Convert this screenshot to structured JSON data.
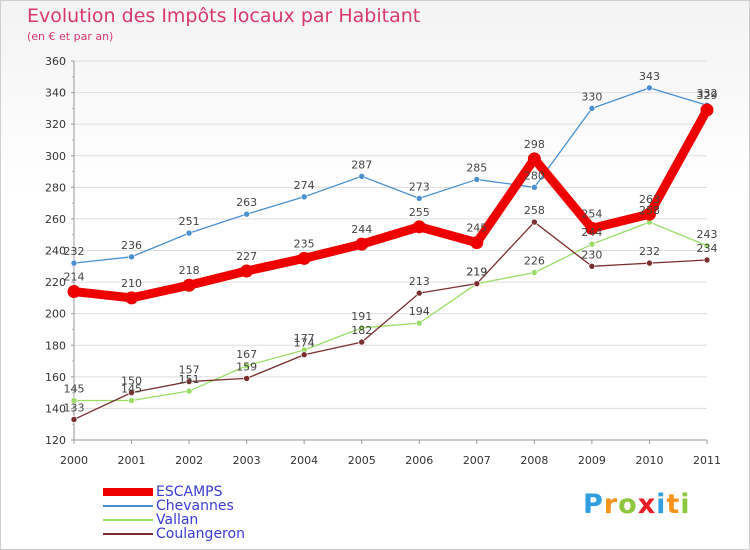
{
  "title": "Evolution des Impôts locaux par Habitant",
  "subtitle": "(en € et par an)",
  "brand": {
    "letters": [
      {
        "ch": "P",
        "color": "#2f9fe0"
      },
      {
        "ch": "r",
        "color": "#f7941d"
      },
      {
        "ch": "o",
        "color": "#8dc63f"
      },
      {
        "ch": "x",
        "color": "#ed1c24"
      },
      {
        "ch": "i",
        "color": "#2f9fe0"
      },
      {
        "ch": "t",
        "color": "#f7941d"
      },
      {
        "ch": "i",
        "color": "#8dc63f"
      }
    ]
  },
  "chart_data": {
    "type": "line",
    "title": "Evolution des Impôts locaux par Habitant",
    "subtitle": "(en € et par an)",
    "xlabel": "",
    "ylabel": "",
    "x": [
      "2000",
      "2001",
      "2002",
      "2003",
      "2004",
      "2005",
      "2006",
      "2007",
      "2008",
      "2009",
      "2010",
      "2011"
    ],
    "ylim": [
      120,
      360
    ],
    "yticks": [
      "120",
      "140",
      "160",
      "180",
      "200",
      "220",
      "240",
      "260",
      "280",
      "300",
      "320",
      "340",
      "360"
    ],
    "grid": "horizontal",
    "legend": "bottom-left",
    "series": [
      {
        "name": "Chevannes",
        "color": "#4a90d0",
        "values": [
          232,
          236,
          251,
          263,
          274,
          287,
          273,
          285,
          280,
          330,
          343,
          332
        ],
        "labels": [
          "232",
          "236",
          "251",
          "263",
          "274",
          "287",
          "273",
          "285",
          "280",
          "330",
          "343",
          "332"
        ]
      },
      {
        "name": "Vallan",
        "color": "#99dd66",
        "values": [
          145,
          145,
          151,
          167,
          177,
          191,
          194,
          219,
          226,
          244,
          258,
          243
        ],
        "labels": [
          "145",
          "145",
          "151",
          "167",
          "177",
          "191",
          "194",
          "219",
          "226",
          "244",
          "258",
          "243"
        ]
      },
      {
        "name": "Coulangeron",
        "color": "#7a2e2e",
        "values": [
          133,
          150,
          157,
          159,
          174,
          182,
          213,
          219,
          258,
          230,
          232,
          234
        ],
        "labels": [
          "133",
          "150",
          "157",
          "159",
          "174",
          "182",
          "213",
          "219",
          "258",
          "230",
          "232",
          "234"
        ]
      },
      {
        "name": "ESCAMPS",
        "color": "#ee0000",
        "values": [
          214,
          210,
          218,
          227,
          235,
          244,
          255,
          245,
          298,
          254,
          263,
          329
        ],
        "labels": [
          "214",
          "210",
          "218",
          "227",
          "235",
          "244",
          "255",
          "245",
          "298",
          "254",
          "263",
          "329"
        ]
      }
    ],
    "legend_order": [
      "ESCAMPS",
      "Chevannes",
      "Vallan",
      "Coulangeron"
    ]
  }
}
